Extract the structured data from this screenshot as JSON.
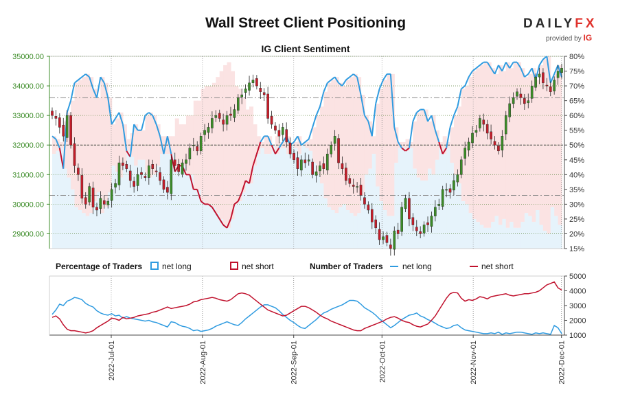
{
  "title": "Wall Street Client Positioning",
  "subtitle": "IG Client Sentiment",
  "logo": {
    "name_main": "DAILY",
    "name_accent": "FX",
    "provided_by": "provided by",
    "brand": "IG"
  },
  "colors": {
    "up_candle": "#3c8c28",
    "down_candle": "#c41e2a",
    "net_long": "#2f9be0",
    "net_short": "#c0112d",
    "long_zone": "#e6f3fb",
    "short_zone": "#fbe3e3",
    "price_axis": "#3c8c28"
  },
  "chart_data": [
    {
      "type": "candlestick",
      "name": "Wall Street price",
      "x_start": "2022-06-10",
      "x_end": "2022-12-02",
      "ylim": [
        28500,
        35000
      ],
      "y_ticks": [
        "29000.00",
        "30000.00",
        "31000.00",
        "32000.00",
        "33000.00",
        "34000.00",
        "35000.00"
      ],
      "closes": [
        33000,
        32900,
        32600,
        32300,
        33000,
        32000,
        31300,
        31000,
        30200,
        30000,
        30600,
        29900,
        29800,
        30200,
        30000,
        30100,
        30500,
        30700,
        31400,
        31300,
        31200,
        30800,
        30600,
        31000,
        31000,
        30900,
        31300,
        31200,
        31100,
        30800,
        30500,
        30400,
        31500,
        31300,
        31100,
        31400,
        31500,
        31900,
        32000,
        31800,
        32300,
        32500,
        32600,
        32900,
        33000,
        32900,
        32700,
        33000,
        33000,
        33200,
        33600,
        33700,
        33900,
        34100,
        34200,
        34000,
        33800,
        33700,
        32900,
        32700,
        32500,
        32300,
        32600,
        32100,
        31700,
        31500,
        31200,
        31500,
        31400,
        31500,
        31000,
        31100,
        31300,
        31200,
        31700,
        32000,
        32300,
        31400,
        31200,
        30800,
        30700,
        30600,
        30600,
        30300,
        30000,
        29800,
        29400,
        29200,
        28800,
        28900,
        28700,
        28500,
        29100,
        29000,
        29900,
        30200,
        29500,
        29300,
        29100,
        29000,
        29300,
        29300,
        29600,
        29900,
        30000,
        30500,
        30500,
        30400,
        30800,
        31000,
        31500,
        31900,
        32100,
        32400,
        32500,
        32900,
        32700,
        32400,
        32200,
        32000,
        31800,
        32300,
        33000,
        33400,
        33600,
        33800,
        33600,
        33400,
        33500,
        34000,
        34300,
        34400,
        34100,
        34000,
        33800,
        34200,
        34500,
        34600
      ],
      "y2_ticks": [
        "15%",
        "20%",
        "25%",
        "30%",
        "35%",
        "40%",
        "45%",
        "50%",
        "55%",
        "60%",
        "65%",
        "70%",
        "75%",
        "80%"
      ],
      "y2lim": [
        15,
        80
      ],
      "sentiment_net_long_pct": [
        53,
        52,
        49,
        42,
        61,
        65,
        71,
        72,
        73,
        74,
        73,
        69,
        66,
        73,
        71,
        66,
        57,
        59,
        61,
        57,
        48,
        46,
        57,
        55,
        55,
        60,
        61,
        60,
        57,
        53,
        47,
        53,
        47,
        41,
        43,
        43,
        40,
        40,
        35,
        35,
        31,
        30,
        30,
        29,
        27,
        25,
        23,
        22,
        25,
        30,
        31,
        34,
        38,
        37,
        43,
        47,
        51,
        53,
        53,
        50,
        47,
        49,
        51,
        53,
        50,
        51,
        53,
        50,
        51,
        52,
        56,
        60,
        63,
        68,
        71,
        72,
        73,
        71,
        70,
        72,
        73,
        74,
        73,
        67,
        60,
        58,
        53,
        64,
        69,
        72,
        74,
        74,
        56,
        51,
        49,
        48,
        49,
        58,
        61,
        62,
        62,
        58,
        60,
        55,
        51,
        47,
        49,
        56,
        60,
        63,
        69,
        70,
        73,
        75,
        76,
        77,
        78,
        78,
        76,
        74,
        77,
        75,
        78,
        76,
        78,
        78,
        76,
        73,
        74,
        76,
        72,
        77,
        79,
        80,
        71,
        74,
        77,
        73
      ],
      "levels_pct": [
        33,
        50,
        66
      ],
      "x_ticks": [
        "2022-Jul-01",
        "2022-Aug-01",
        "2022-Sep-01",
        "2022-Oct-01",
        "2022-Nov-01",
        "2022-Dec-01"
      ]
    },
    {
      "type": "line",
      "name": "Number of Traders",
      "ylim": [
        1000,
        5000
      ],
      "y_ticks": [
        "1000",
        "2000",
        "3000",
        "4000",
        "5000"
      ],
      "series": [
        {
          "name": "net long",
          "values": [
            2400,
            2700,
            3100,
            3000,
            3300,
            3400,
            3550,
            3500,
            3400,
            3150,
            3000,
            2900,
            2650,
            2500,
            2400,
            2350,
            2450,
            2300,
            2350,
            2150,
            2250,
            2150,
            2100,
            2050,
            2000,
            1950,
            2000,
            1900,
            1850,
            1750,
            1650,
            1550,
            1900,
            1850,
            1700,
            1600,
            1550,
            1450,
            1300,
            1350,
            1250,
            1300,
            1350,
            1450,
            1600,
            1700,
            1800,
            1900,
            1800,
            1700,
            1650,
            1850,
            2100,
            2300,
            2500,
            2700,
            2900,
            3050,
            3050,
            2950,
            2850,
            2650,
            2400,
            2200,
            2000,
            1850,
            1650,
            1500,
            1450,
            1650,
            1850,
            2050,
            2300,
            2500,
            2600,
            2750,
            2850,
            2950,
            3050,
            3200,
            3350,
            3350,
            3300,
            3100,
            2850,
            2700,
            2550,
            2350,
            2100,
            1900,
            1700,
            1500,
            1650,
            1850,
            2050,
            2200,
            2350,
            2400,
            2500,
            2300,
            2200,
            2050,
            1950,
            1800,
            1650,
            1550,
            1450,
            1500,
            1650,
            1700,
            1500,
            1350,
            1300,
            1250,
            1200,
            1150,
            1100,
            1100,
            1150,
            1100,
            1200,
            1050,
            1150,
            1100,
            1150,
            1200,
            1200,
            1150,
            1100,
            1050,
            1150,
            1100,
            1150,
            1100,
            1050,
            1650,
            1500,
            1100
          ]
        },
        {
          "name": "net short",
          "values": [
            2200,
            2300,
            2100,
            1700,
            1400,
            1300,
            1300,
            1250,
            1200,
            1150,
            1200,
            1300,
            1500,
            1650,
            1800,
            1950,
            2150,
            2100,
            2000,
            2200,
            2100,
            2150,
            2200,
            2300,
            2350,
            2400,
            2450,
            2550,
            2600,
            2700,
            2800,
            2900,
            2800,
            2850,
            2900,
            2950,
            3000,
            3100,
            3250,
            3300,
            3400,
            3450,
            3500,
            3550,
            3500,
            3400,
            3350,
            3300,
            3400,
            3600,
            3800,
            3850,
            3800,
            3700,
            3500,
            3300,
            3100,
            2900,
            2700,
            2600,
            2500,
            2400,
            2300,
            2350,
            2500,
            2650,
            2800,
            2950,
            2950,
            2850,
            2700,
            2550,
            2350,
            2200,
            2100,
            1950,
            1850,
            1750,
            1650,
            1550,
            1450,
            1350,
            1300,
            1300,
            1450,
            1550,
            1650,
            1750,
            1850,
            1950,
            2100,
            2200,
            2250,
            2150,
            2000,
            1900,
            1850,
            1700,
            1600,
            1550,
            1650,
            1750,
            2000,
            2300,
            2700,
            3100,
            3500,
            3800,
            3900,
            3850,
            3500,
            3300,
            3400,
            3350,
            3450,
            3600,
            3550,
            3450,
            3600,
            3650,
            3700,
            3750,
            3800,
            3700,
            3650,
            3700,
            3750,
            3800,
            3800,
            3850,
            3900,
            4000,
            4200,
            4400,
            4500,
            4600,
            4200,
            4050
          ]
        }
      ],
      "x_ticks": [
        "2022-Jul-01",
        "2022-Aug-01",
        "2022-Sep-01",
        "2022-Oct-01",
        "2022-Nov-01",
        "2022-Dec-01"
      ]
    }
  ],
  "legend": {
    "pct_title": "Percentage of Traders",
    "pct_long": "net long",
    "pct_short": "net short",
    "num_title": "Number of Traders",
    "num_long": "net long",
    "num_short": "net short"
  }
}
